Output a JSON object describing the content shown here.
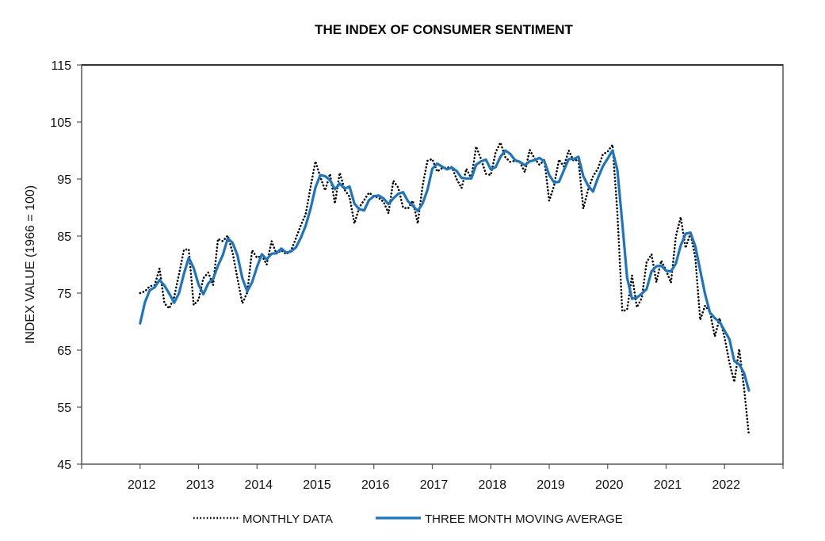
{
  "chart_data": {
    "type": "line",
    "title": "THE INDEX OF CONSUMER SENTIMENT",
    "xlabel": "",
    "ylabel": "INDEX VALUE (1966 = 100)",
    "ylim": [
      45,
      115
    ],
    "yticks": [
      45,
      55,
      65,
      75,
      85,
      95,
      105,
      115
    ],
    "xlim": [
      2011,
      2023
    ],
    "xtick_labels": [
      "2012",
      "2013",
      "2014",
      "2015",
      "2016",
      "2017",
      "2018",
      "2019",
      "2020",
      "2021",
      "2022"
    ],
    "grid": false,
    "legend_position": "bottom-center",
    "x_start": "2012-01",
    "frequency": "monthly",
    "series": [
      {
        "name": "MONTHLY DATA",
        "style": "dotted",
        "color": "#000000",
        "values": [
          75.0,
          75.3,
          76.2,
          76.4,
          79.3,
          73.2,
          72.3,
          74.3,
          78.3,
          82.6,
          82.7,
          72.9,
          73.8,
          77.6,
          78.6,
          76.4,
          84.5,
          84.1,
          85.1,
          82.1,
          77.5,
          73.2,
          75.1,
          82.5,
          81.2,
          81.6,
          80.0,
          84.1,
          81.9,
          82.5,
          81.8,
          82.5,
          84.6,
          86.9,
          88.8,
          93.6,
          98.1,
          95.4,
          93.0,
          95.9,
          90.7,
          96.1,
          93.1,
          91.9,
          87.2,
          90.0,
          91.3,
          92.6,
          92.0,
          91.7,
          91.0,
          89.0,
          94.7,
          93.5,
          90.0,
          89.8,
          91.2,
          87.2,
          93.8,
          98.2,
          98.5,
          96.3,
          96.9,
          97.0,
          97.1,
          95.0,
          93.4,
          96.8,
          95.1,
          100.7,
          98.5,
          95.9,
          95.7,
          99.7,
          101.4,
          98.8,
          98.0,
          98.2,
          97.9,
          96.2,
          100.1,
          98.6,
          97.5,
          98.3,
          91.2,
          93.8,
          98.4,
          97.2,
          100.0,
          98.2,
          98.4,
          89.8,
          93.2,
          95.5,
          96.8,
          99.3,
          99.8,
          101.0,
          89.1,
          71.8,
          72.1,
          78.1,
          72.5,
          74.1,
          80.4,
          81.8,
          76.9,
          80.7,
          79.0,
          76.8,
          84.9,
          88.3,
          82.9,
          85.5,
          81.2,
          70.3,
          72.8,
          71.7,
          67.4,
          70.6,
          67.2,
          62.8,
          59.4,
          65.2,
          58.4,
          50.0
        ]
      },
      {
        "name": "THREE MONTH MOVING AVERAGE",
        "style": "solid",
        "color": "#1b75c2",
        "values": [
          69.7,
          73.4,
          75.5,
          76.0,
          77.3,
          76.3,
          74.9,
          73.3,
          75.0,
          78.4,
          81.2,
          79.4,
          76.5,
          74.8,
          76.7,
          77.5,
          79.8,
          81.7,
          84.6,
          83.8,
          81.6,
          77.6,
          75.3,
          76.9,
          79.6,
          81.8,
          80.9,
          81.9,
          82.0,
          82.8,
          82.1,
          82.3,
          83.0,
          84.7,
          86.8,
          89.8,
          93.5,
          95.7,
          95.5,
          94.8,
          93.2,
          94.2,
          93.3,
          93.7,
          90.7,
          89.7,
          89.5,
          91.3,
          92.0,
          92.1,
          91.6,
          90.6,
          91.6,
          92.4,
          92.7,
          91.1,
          90.3,
          89.4,
          90.7,
          93.1,
          96.8,
          97.7,
          97.2,
          96.7,
          97.0,
          96.4,
          95.2,
          95.1,
          95.1,
          97.5,
          98.1,
          98.4,
          96.7,
          97.1,
          98.9,
          100.0,
          99.4,
          98.3,
          98.0,
          97.4,
          98.1,
          98.3,
          98.7,
          98.1,
          95.7,
          94.4,
          94.5,
          96.5,
          98.5,
          98.5,
          98.9,
          95.5,
          93.8,
          92.8,
          95.2,
          97.2,
          98.6,
          100.0,
          96.6,
          87.3,
          77.7,
          74.0,
          74.2,
          74.9,
          75.7,
          78.8,
          79.7,
          79.8,
          78.9,
          78.8,
          80.2,
          83.3,
          85.4,
          85.6,
          83.2,
          79.0,
          74.8,
          71.6,
          70.6,
          69.9,
          68.4,
          66.9,
          63.1,
          62.5,
          61.0,
          57.9
        ]
      }
    ]
  }
}
